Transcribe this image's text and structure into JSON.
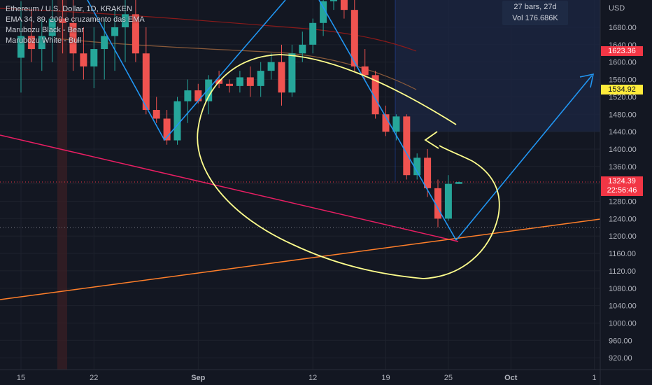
{
  "legend": {
    "symbol": "Ethereum / U.S. Dollar, 1D, KRAKEN",
    "indicator1": "EMA 34, 89, 200 e cruzamento das EMA",
    "indicator2": "Marubozu Black - Bear",
    "indicator3": "Marubozu White - Bull"
  },
  "currency_label": "USD",
  "info_box": {
    "bars": "27 bars, 27d",
    "volume": "Vol 176.686K"
  },
  "price_tags": {
    "red_tag": "1623.36",
    "yellow_tag": "1534.92",
    "current_price": "1324.39",
    "countdown": "22:56:46"
  },
  "colors": {
    "background": "#131722",
    "bull": "#26a69a",
    "bear": "#ef5350",
    "trend_blue": "#2196f3",
    "annotation_yellow": "#ffff8d",
    "pink_line": "#e91e63",
    "orange_line": "#ff7f2a",
    "ema_red": "#8b1a1a",
    "ema_brown": "#8a5a3a",
    "selection": "#1c2541"
  },
  "chart_data": {
    "type": "candlestick",
    "title": "Ethereum / U.S. Dollar, 1D, KRAKEN",
    "ylim": [
      890,
      1760
    ],
    "y_ticks": [
      1680,
      1640,
      1600,
      1560,
      1520,
      1480,
      1440,
      1400,
      1360,
      1320,
      1280,
      1240,
      1200,
      1160,
      1120,
      1080,
      1040,
      1000,
      960,
      920
    ],
    "x_tick_labels": [
      {
        "day": 0,
        "label": "15"
      },
      {
        "day": 7,
        "label": "22"
      },
      {
        "day": 17,
        "label": "Sep"
      },
      {
        "day": 28,
        "label": "12"
      },
      {
        "day": 35,
        "label": "19"
      },
      {
        "day": 41,
        "label": "25"
      },
      {
        "day": 47,
        "label": "Oct"
      },
      {
        "day": 55,
        "label": "1"
      }
    ],
    "candles": [
      {
        "day": 0,
        "open": 1610,
        "high": 1740,
        "low": 1530,
        "close": 1660
      },
      {
        "day": 1,
        "open": 1660,
        "high": 1720,
        "low": 1600,
        "close": 1630
      },
      {
        "day": 2,
        "open": 1630,
        "high": 1700,
        "low": 1580,
        "close": 1660
      },
      {
        "day": 3,
        "open": 1660,
        "high": 1750,
        "low": 1600,
        "close": 1700
      },
      {
        "day": 4,
        "open": 1700,
        "high": 1760,
        "low": 1620,
        "close": 1690
      },
      {
        "day": 5,
        "open": 1690,
        "high": 1760,
        "low": 1580,
        "close": 1620
      },
      {
        "day": 6,
        "open": 1620,
        "high": 1680,
        "low": 1560,
        "close": 1590
      },
      {
        "day": 7,
        "open": 1590,
        "high": 1680,
        "low": 1540,
        "close": 1630
      },
      {
        "day": 8,
        "open": 1630,
        "high": 1700,
        "low": 1560,
        "close": 1660
      },
      {
        "day": 9,
        "open": 1660,
        "high": 1720,
        "low": 1580,
        "close": 1680
      },
      {
        "day": 10,
        "open": 1680,
        "high": 1760,
        "low": 1600,
        "close": 1710
      },
      {
        "day": 11,
        "open": 1710,
        "high": 1760,
        "low": 1600,
        "close": 1620
      },
      {
        "day": 12,
        "open": 1620,
        "high": 1680,
        "low": 1480,
        "close": 1490
      },
      {
        "day": 13,
        "open": 1490,
        "high": 1520,
        "low": 1460,
        "close": 1470
      },
      {
        "day": 14,
        "open": 1470,
        "high": 1490,
        "low": 1410,
        "close": 1420
      },
      {
        "day": 15,
        "open": 1420,
        "high": 1520,
        "low": 1410,
        "close": 1510
      },
      {
        "day": 16,
        "open": 1510,
        "high": 1560,
        "low": 1460,
        "close": 1535
      },
      {
        "day": 17,
        "open": 1535,
        "high": 1550,
        "low": 1505,
        "close": 1510
      },
      {
        "day": 18,
        "open": 1510,
        "high": 1570,
        "low": 1480,
        "close": 1560
      },
      {
        "day": 19,
        "open": 1560,
        "high": 1580,
        "low": 1540,
        "close": 1550
      },
      {
        "day": 20,
        "open": 1550,
        "high": 1560,
        "low": 1530,
        "close": 1545
      },
      {
        "day": 21,
        "open": 1545,
        "high": 1580,
        "low": 1530,
        "close": 1565
      },
      {
        "day": 22,
        "open": 1565,
        "high": 1590,
        "low": 1520,
        "close": 1545
      },
      {
        "day": 23,
        "open": 1545,
        "high": 1600,
        "low": 1520,
        "close": 1580
      },
      {
        "day": 24,
        "open": 1580,
        "high": 1620,
        "low": 1560,
        "close": 1600
      },
      {
        "day": 25,
        "open": 1600,
        "high": 1640,
        "low": 1500,
        "close": 1530
      },
      {
        "day": 26,
        "open": 1530,
        "high": 1640,
        "low": 1520,
        "close": 1620
      },
      {
        "day": 27,
        "open": 1620,
        "high": 1670,
        "low": 1600,
        "close": 1640
      },
      {
        "day": 28,
        "open": 1640,
        "high": 1700,
        "low": 1620,
        "close": 1690
      },
      {
        "day": 29,
        "open": 1690,
        "high": 1760,
        "low": 1660,
        "close": 1740
      },
      {
        "day": 30,
        "open": 1740,
        "high": 1760,
        "low": 1720,
        "close": 1750
      },
      {
        "day": 31,
        "open": 1750,
        "high": 1760,
        "low": 1700,
        "close": 1720
      },
      {
        "day": 32,
        "open": 1720,
        "high": 1760,
        "low": 1580,
        "close": 1590
      },
      {
        "day": 33,
        "open": 1590,
        "high": 1630,
        "low": 1560,
        "close": 1570
      },
      {
        "day": 34,
        "open": 1570,
        "high": 1580,
        "low": 1470,
        "close": 1480
      },
      {
        "day": 35,
        "open": 1480,
        "high": 1500,
        "low": 1430,
        "close": 1440
      },
      {
        "day": 36,
        "open": 1440,
        "high": 1480,
        "low": 1420,
        "close": 1475
      },
      {
        "day": 37,
        "open": 1475,
        "high": 1480,
        "low": 1330,
        "close": 1340
      },
      {
        "day": 38,
        "open": 1340,
        "high": 1390,
        "low": 1330,
        "close": 1380
      },
      {
        "day": 39,
        "open": 1380,
        "high": 1400,
        "low": 1290,
        "close": 1310
      },
      {
        "day": 40,
        "open": 1310,
        "high": 1330,
        "low": 1220,
        "close": 1240
      },
      {
        "day": 41,
        "open": 1240,
        "high": 1340,
        "low": 1235,
        "close": 1320
      },
      {
        "day": 42,
        "open": 1320,
        "high": 1325,
        "low": 1320,
        "close": 1324
      }
    ]
  }
}
